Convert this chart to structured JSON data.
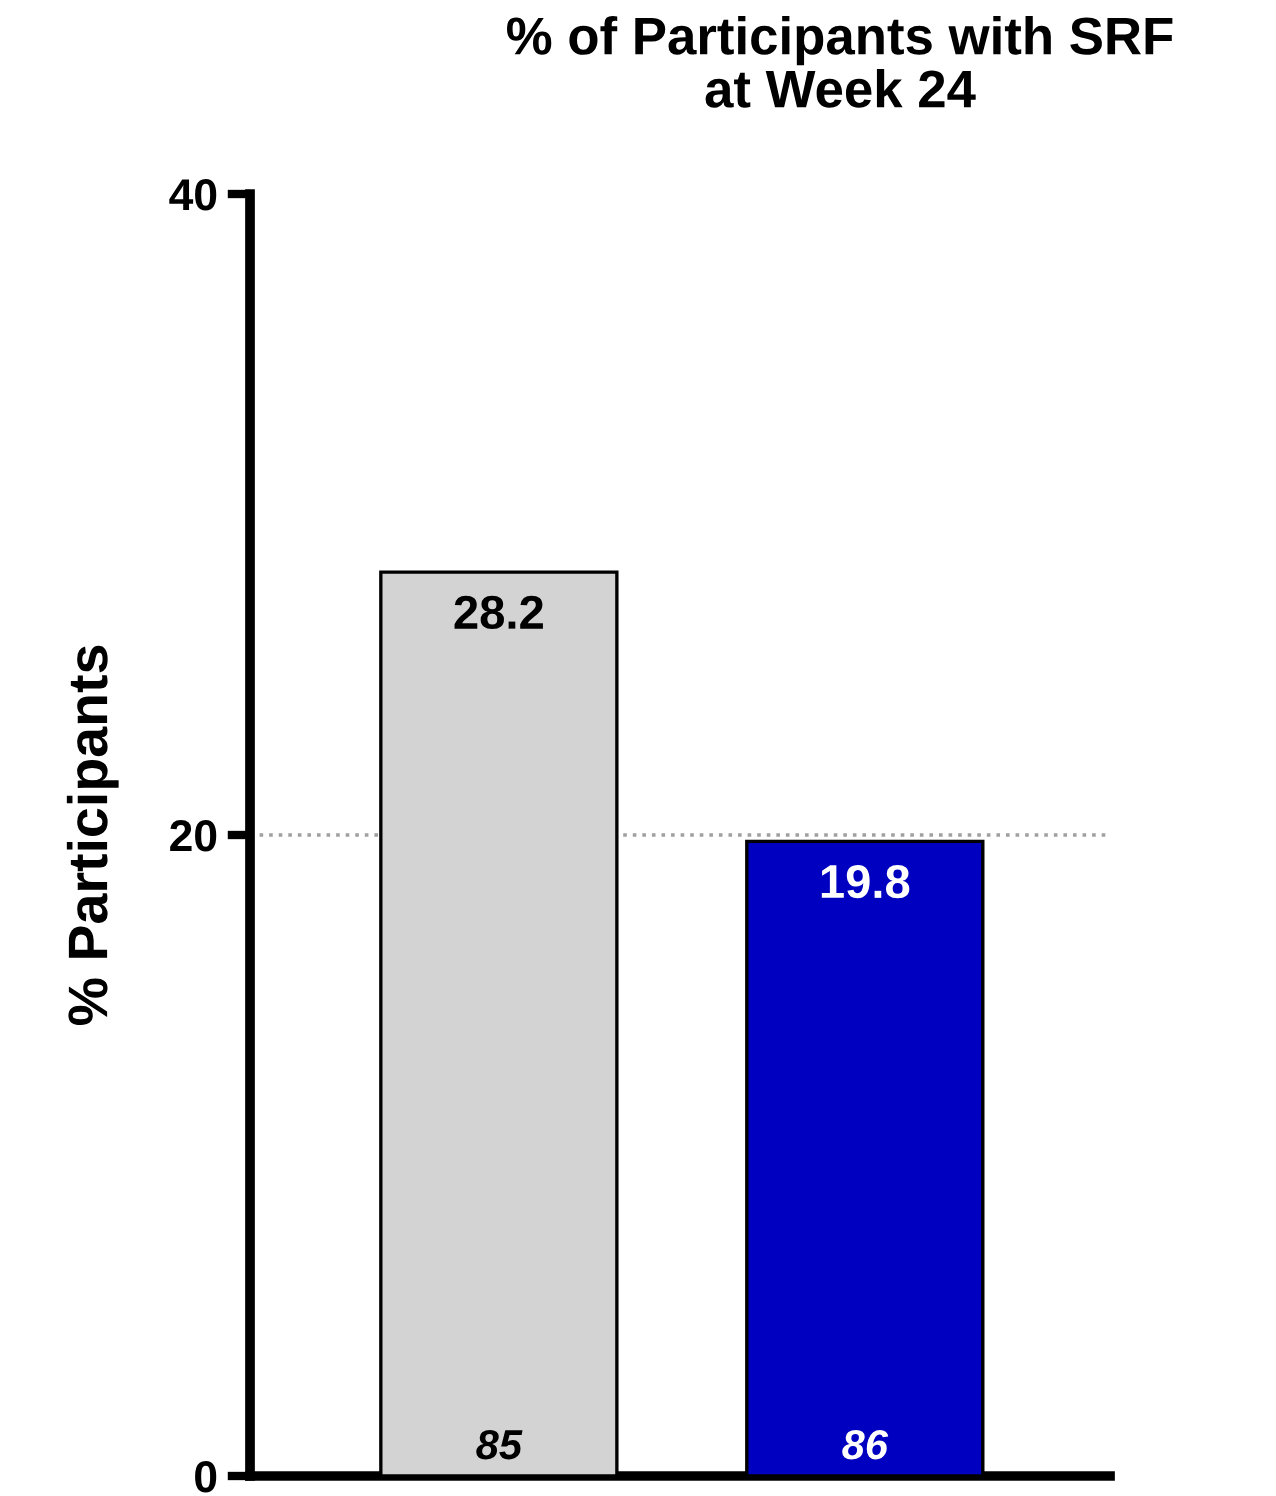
{
  "chart_data": {
    "type": "bar",
    "title": "% of Participants with SRF\nat Week 24",
    "ylabel": "% Participants",
    "categories": [
      null,
      null
    ],
    "values": [
      28.2,
      19.8
    ],
    "colors": [
      "#d3d3d3",
      "#0000c0"
    ],
    "ylim": [
      0,
      40
    ],
    "yticks": [
      0,
      20,
      40
    ],
    "grid": false,
    "data_labels": true,
    "ref_lines": [
      {
        "axis": "y",
        "value": 20,
        "color": "#a0a0a0",
        "line_style": "dotted"
      }
    ],
    "annotations": [
      {
        "text": "85",
        "y": 0
      },
      {
        "text": "86",
        "y": 0
      }
    ]
  }
}
